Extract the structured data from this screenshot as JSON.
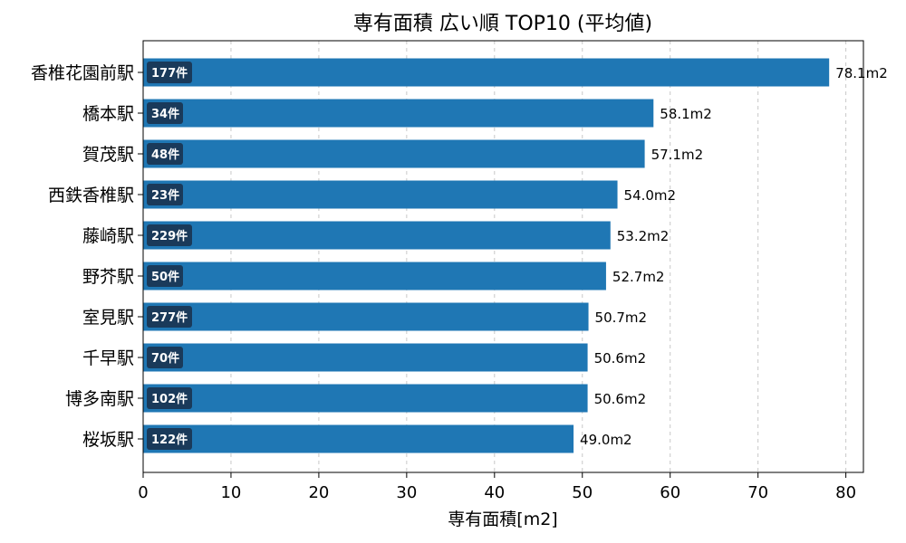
{
  "chart_data": {
    "type": "bar",
    "orientation": "horizontal",
    "title": "専有面積 広い順 TOP10 (平均値)",
    "xlabel": "専有面積[m2]",
    "ylabel": "",
    "xlim": [
      0,
      82
    ],
    "xticks": [
      0,
      10,
      20,
      30,
      40,
      50,
      60,
      70,
      80
    ],
    "grid": "x-dashed",
    "bar_color": "#1f77b4",
    "badge_color": "#1a3a5a",
    "categories": [
      "香椎花園前駅",
      "橋本駅",
      "賀茂駅",
      "西鉄香椎駅",
      "藤崎駅",
      "野芥駅",
      "室見駅",
      "千早駅",
      "博多南駅",
      "桜坂駅"
    ],
    "values": [
      78.1,
      58.1,
      57.1,
      54.0,
      53.2,
      52.7,
      50.7,
      50.6,
      50.6,
      49.0
    ],
    "value_labels": [
      "78.1m2",
      "58.1m2",
      "57.1m2",
      "54.0m2",
      "53.2m2",
      "52.7m2",
      "50.7m2",
      "50.6m2",
      "50.6m2",
      "49.0m2"
    ],
    "counts": [
      "177件",
      "34件",
      "48件",
      "23件",
      "229件",
      "50件",
      "277件",
      "70件",
      "102件",
      "122件"
    ]
  }
}
